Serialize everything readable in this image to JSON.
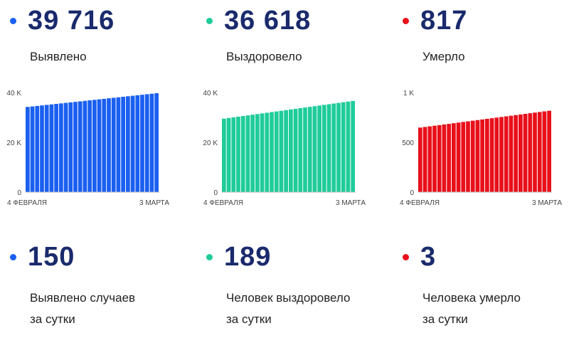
{
  "columns": [
    {
      "total": "39 716",
      "label": "Выявлено",
      "color": "#1a5ff0",
      "daily": "150",
      "daily_label_line1": "Выявлено случаев",
      "daily_label_line2": "за сутки"
    },
    {
      "total": "36 618",
      "label": "Выздоровело",
      "color": "#1fcc9a",
      "daily": "189",
      "daily_label_line1": "Человек выздоровело",
      "daily_label_line2": "за сутки"
    },
    {
      "total": "817",
      "label": "Умерло",
      "color": "#e8101a",
      "daily": "3",
      "daily_label_line1": "Человека умерло",
      "daily_label_line2": "за сутки"
    }
  ],
  "chart_data": [
    {
      "type": "bar",
      "x_start_label": "4 ФЕВРАЛЯ",
      "x_end_label": "3 МАРТА",
      "y_ticks": [
        "0",
        "20 K",
        "40 K"
      ],
      "ylim": [
        0,
        40000
      ],
      "start_value": 34200,
      "end_value": 39716,
      "n_bars": 28,
      "color": "#1a5ff0"
    },
    {
      "type": "bar",
      "x_start_label": "4 ФЕВРАЛЯ",
      "x_end_label": "3 МАРТА",
      "y_ticks": [
        "0",
        "20 K",
        "40 K"
      ],
      "ylim": [
        0,
        40000
      ],
      "start_value": 29500,
      "end_value": 36618,
      "n_bars": 28,
      "color": "#1fcc9a"
    },
    {
      "type": "bar",
      "x_start_label": "4 ФЕВРАЛЯ",
      "x_end_label": "3 МАРТА",
      "y_ticks": [
        "0",
        "500",
        "1 K"
      ],
      "ylim": [
        0,
        1000
      ],
      "start_value": 648,
      "end_value": 817,
      "n_bars": 28,
      "color": "#e8101a"
    }
  ]
}
